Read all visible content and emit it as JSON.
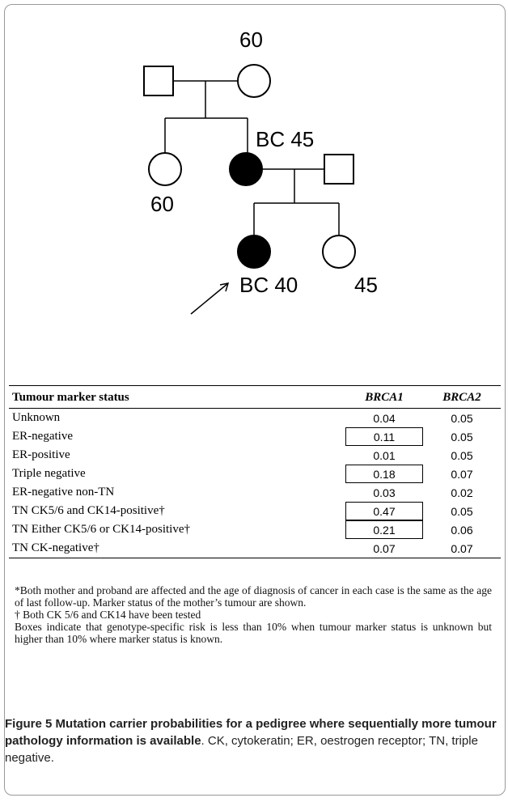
{
  "pedigree": {
    "labels": [
      "60",
      "BC 45",
      "60",
      "BC 40",
      "45"
    ]
  },
  "table": {
    "header": [
      "Tumour marker status",
      "BRCA1",
      "BRCA2"
    ],
    "rows": [
      [
        "Unknown",
        "0.04",
        "0.05"
      ],
      [
        "ER-negative",
        "0.11",
        "0.05"
      ],
      [
        "ER-positive",
        "0.01",
        "0.05"
      ],
      [
        "Triple negative",
        "0.18",
        "0.07"
      ],
      [
        "ER-negative non-TN",
        "0.03",
        "0.02"
      ],
      [
        "TN CK5/6 and CK14-positive†",
        "0.47",
        "0.05"
      ],
      [
        "TN Either CK5/6 or CK14-positive†",
        "0.21",
        "0.06"
      ],
      [
        "TN CK-negative†",
        "0.07",
        "0.07"
      ]
    ]
  },
  "notes": [
    "*Both mother and proband are affected and the age of diagnosis of cancer in each case is the same as the age of last follow-up.  Marker status of the mother’s tumour are shown.",
    "† Both CK 5/6 and CK14 have been tested",
    "Boxes indicate that genotype-specific risk is less than 10% when tumour marker status is unknown but higher than 10% where marker status is known."
  ],
  "caption": {
    "label": "Figure 5",
    "title": "Mutation carrier probabilities for a pedigree where sequentially more tumour pathology information is available",
    "text": ". CK, cytokeratin; ER, oestrogen receptor; TN, triple negative."
  }
}
